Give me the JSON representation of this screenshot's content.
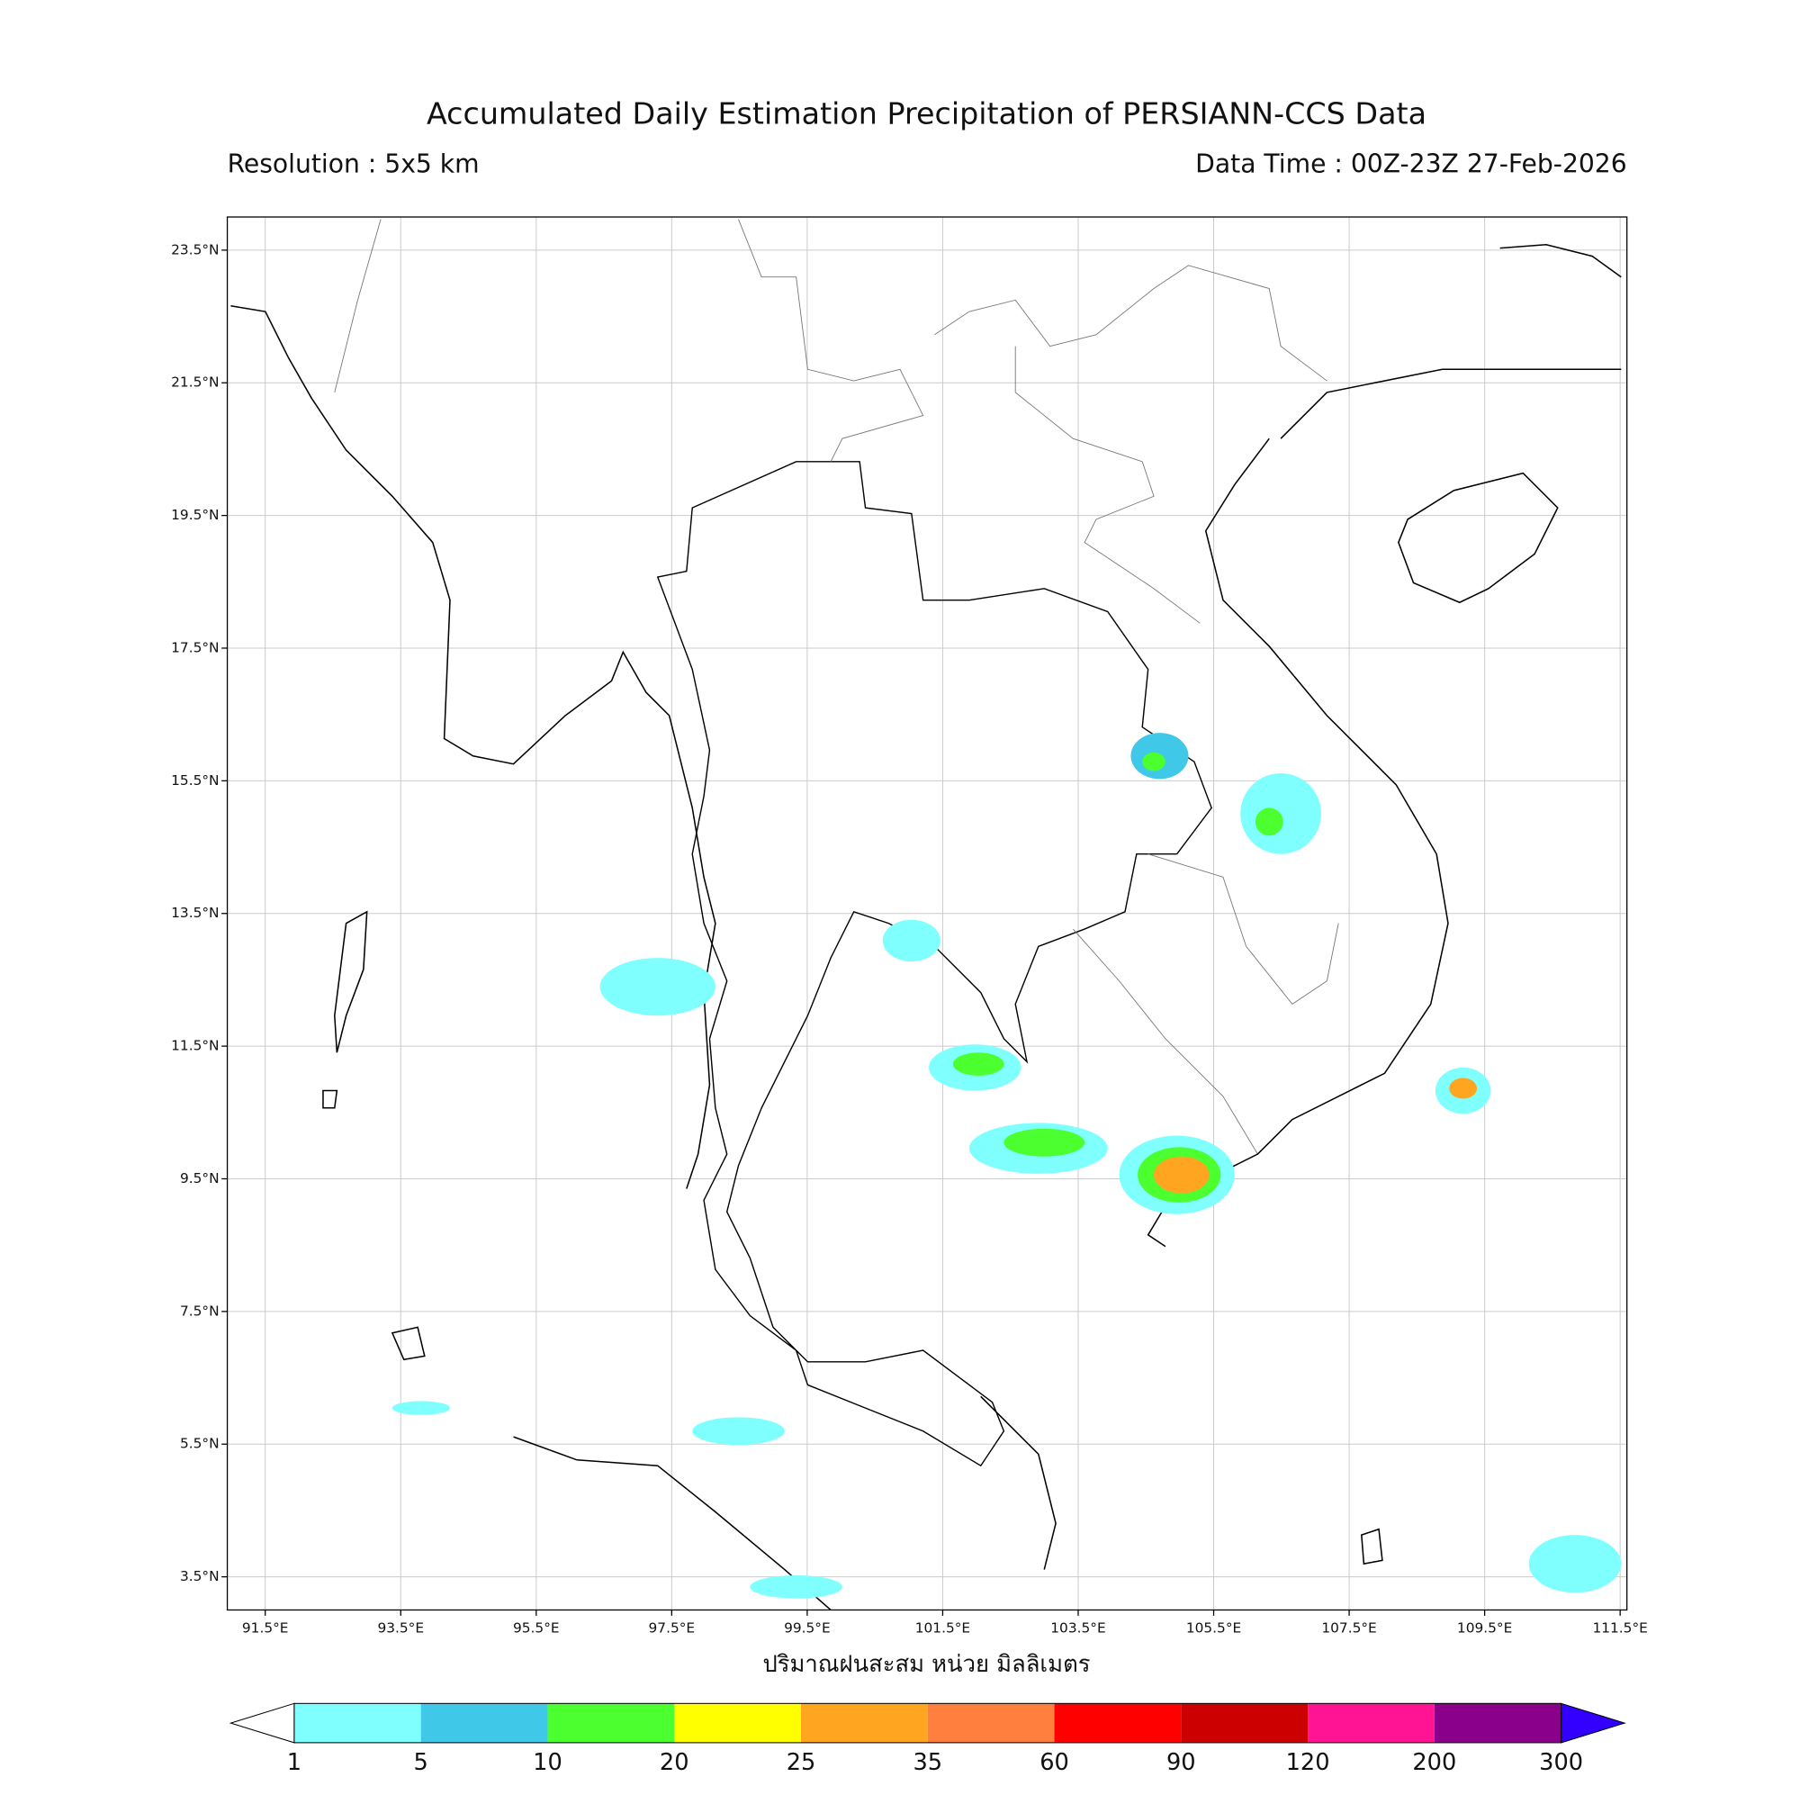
{
  "header": {
    "title": "Accumulated Daily Estimation Precipitation of PERSIANN-CCS Data",
    "resolution": "Resolution : 5x5 km",
    "data_time": "Data Time : 00Z-23Z 27-Feb-2026"
  },
  "map": {
    "xlim": [
      90.94,
      111.6
    ],
    "ylim": [
      3.0,
      24.0
    ],
    "grid": true,
    "xticks": [
      {
        "value": 91.5,
        "label": "91.5°E"
      },
      {
        "value": 93.5,
        "label": "93.5°E"
      },
      {
        "value": 95.5,
        "label": "95.5°E"
      },
      {
        "value": 97.5,
        "label": "97.5°E"
      },
      {
        "value": 99.5,
        "label": "99.5°E"
      },
      {
        "value": 101.5,
        "label": "101.5°E"
      },
      {
        "value": 103.5,
        "label": "103.5°E"
      },
      {
        "value": 105.5,
        "label": "105.5°E"
      },
      {
        "value": 107.5,
        "label": "107.5°E"
      },
      {
        "value": 109.5,
        "label": "109.5°E"
      },
      {
        "value": 111.5,
        "label": "111.5°E"
      }
    ],
    "yticks": [
      {
        "value": 3.5,
        "label": "3.5°N"
      },
      {
        "value": 5.5,
        "label": "5.5°N"
      },
      {
        "value": 7.5,
        "label": "7.5°N"
      },
      {
        "value": 9.5,
        "label": "9.5°N"
      },
      {
        "value": 11.5,
        "label": "11.5°N"
      },
      {
        "value": 13.5,
        "label": "13.5°N"
      },
      {
        "value": 15.5,
        "label": "15.5°N"
      },
      {
        "value": 17.5,
        "label": "17.5°N"
      },
      {
        "value": 19.5,
        "label": "19.5°N"
      },
      {
        "value": 21.5,
        "label": "21.5°N"
      },
      {
        "value": 23.5,
        "label": "23.5°N"
      }
    ],
    "xlabel": "ปริมาณฝนสะสม หน่วย มิลลิเมตร"
  },
  "colorbar": {
    "levels": [
      1,
      5,
      10,
      20,
      25,
      35,
      60,
      90,
      120,
      200,
      300
    ],
    "colors": [
      "#80ffff",
      "#40c8e8",
      "#4cff2f",
      "#ffff00",
      "#ffa520",
      "#ff7f3f",
      "#ff0000",
      "#cc0000",
      "#ff1493",
      "#8b008b"
    ],
    "under_color": "#ffffff",
    "over_color": "#3300ff"
  }
}
